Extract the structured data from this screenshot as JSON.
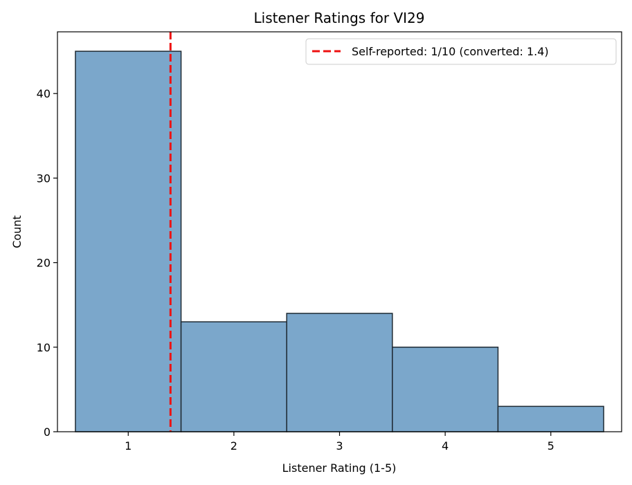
{
  "chart_data": {
    "type": "bar",
    "title": "Listener Ratings for VI29",
    "xlabel": "Listener Rating (1-5)",
    "ylabel": "Count",
    "categories": [
      "1",
      "2",
      "3",
      "4",
      "5"
    ],
    "x": [
      1,
      2,
      3,
      4,
      5
    ],
    "values": [
      45,
      13,
      14,
      10,
      3
    ],
    "xlim": [
      0.33,
      5.67
    ],
    "ylim": [
      0,
      47.3
    ],
    "yticks": [
      0,
      10,
      20,
      30,
      40
    ],
    "grid": false,
    "legend_position": "top-right",
    "bar_color": "#7ba7cb",
    "bar_edge_color": "#1f2a33",
    "reference_line": {
      "x": 1.4,
      "label": "Self-reported: 1/10 (converted: 1.4)",
      "color": "#ee1111",
      "style": "dashed"
    }
  }
}
